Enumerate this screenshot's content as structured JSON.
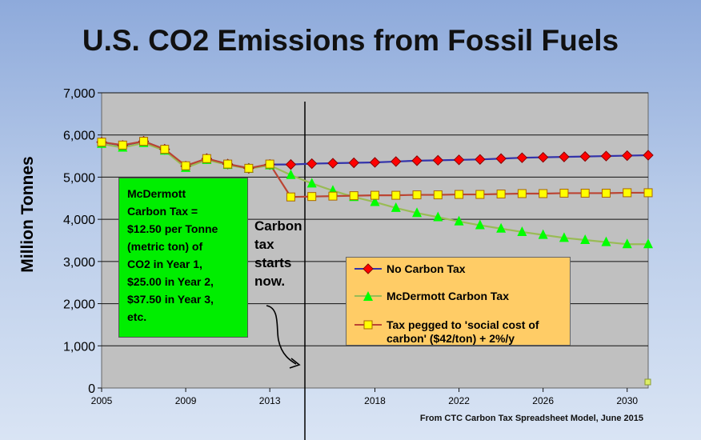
{
  "title": "U.S. CO2 Emissions from Fossil Fuels",
  "source": "From CTC Carbon Tax Spreadsheet Model, June 2015",
  "annotation": "Carbon\ntax\nstarts\nnow.",
  "green_box": "McDermott\nCarbon Tax =\n$12.50 per Tonne\n(metric ton) of\nCO2 in Year 1,\n$25.00 in Year 2,\n$37.50 in Year 3,\netc.",
  "colors": {
    "plot_bg": "#c0c0c0",
    "no_tax": "#ff0000",
    "no_tax_line": "#3333aa",
    "mcdermott": "#00ff00",
    "mcdermott_line": "#99bb55",
    "social": "#ffff00",
    "social_line": "#bb4433",
    "legend_bg": "#ffcc66",
    "box_bg": "#00ee00"
  },
  "chart_data": {
    "type": "line",
    "title": "U.S. CO2 Emissions from Fossil Fuels",
    "ylabel": "Million Tonnes",
    "xlabel": "",
    "xlim": [
      2005,
      2031
    ],
    "ylim": [
      0,
      7000
    ],
    "yticks": [
      0,
      1000,
      2000,
      3000,
      4000,
      5000,
      6000,
      7000
    ],
    "ytick_labels": [
      "0",
      "1,000",
      "2,000",
      "3,000",
      "4,000",
      "5,000",
      "6,000",
      "7,000"
    ],
    "xticks": [
      2005,
      2009,
      2013,
      2018,
      2022,
      2026,
      2030
    ],
    "xtick_labels": [
      "2005",
      "2009",
      "2013",
      "2018",
      "2022",
      "2026",
      "2030"
    ],
    "grid": true,
    "legend_position": "right",
    "series": [
      {
        "name": "No Carbon Tax",
        "marker": "diamond",
        "x": [
          2005,
          2006,
          2007,
          2008,
          2009,
          2010,
          2011,
          2012,
          2013,
          2014,
          2015,
          2016,
          2017,
          2018,
          2019,
          2020,
          2021,
          2022,
          2023,
          2024,
          2025,
          2026,
          2027,
          2028,
          2029,
          2030,
          2031
        ],
        "values": [
          5830,
          5750,
          5850,
          5660,
          5260,
          5440,
          5310,
          5210,
          5300,
          5300,
          5320,
          5330,
          5340,
          5350,
          5370,
          5390,
          5400,
          5410,
          5420,
          5440,
          5460,
          5470,
          5480,
          5490,
          5500,
          5510,
          5520
        ]
      },
      {
        "name": "McDermott Carbon Tax",
        "marker": "triangle",
        "x": [
          2005,
          2006,
          2007,
          2008,
          2009,
          2010,
          2011,
          2012,
          2013,
          2014,
          2015,
          2016,
          2017,
          2018,
          2019,
          2020,
          2021,
          2022,
          2023,
          2024,
          2025,
          2026,
          2027,
          2028,
          2029,
          2030,
          2031
        ],
        "values": [
          5790,
          5700,
          5810,
          5630,
          5220,
          5410,
          5290,
          5200,
          5280,
          5050,
          4850,
          4680,
          4530,
          4410,
          4270,
          4150,
          4050,
          3950,
          3860,
          3780,
          3700,
          3630,
          3560,
          3510,
          3460,
          3410,
          3410
        ]
      },
      {
        "name": "Tax pegged to 'social cost of carbon' ($42/ton) + 2%/y",
        "marker": "square",
        "x": [
          2005,
          2006,
          2007,
          2008,
          2009,
          2010,
          2011,
          2012,
          2013,
          2014,
          2015,
          2016,
          2017,
          2018,
          2019,
          2020,
          2021,
          2022,
          2023,
          2024,
          2025,
          2026,
          2027,
          2028,
          2029,
          2030,
          2031
        ],
        "values": [
          5830,
          5760,
          5850,
          5660,
          5270,
          5440,
          5310,
          5210,
          5310,
          4530,
          4540,
          4550,
          4560,
          4570,
          4570,
          4580,
          4580,
          4590,
          4590,
          4600,
          4610,
          4610,
          4620,
          4620,
          4620,
          4630,
          4630
        ]
      }
    ]
  }
}
